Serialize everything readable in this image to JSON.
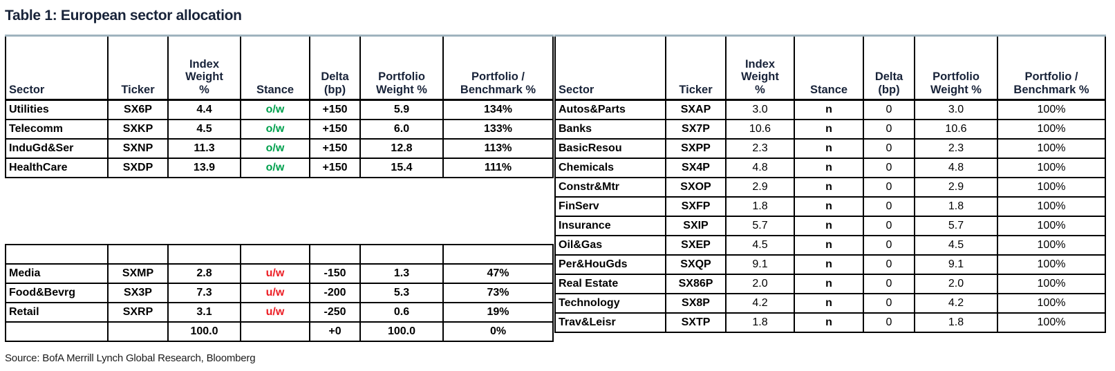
{
  "title": "Table 1: European sector allocation",
  "source": "Source: BofA Merrill Lynch Global Research, Bloomberg",
  "headers": [
    "Sector",
    "Ticker",
    "Index\nWeight\n%",
    "Stance",
    "Delta\n(bp)",
    "Portfolio\nWeight %",
    "Portfolio /\nBenchmark %"
  ],
  "left_top": {
    "rows": [
      [
        "Utilities",
        "SX6P",
        "4.4",
        "o/w",
        "+150",
        "5.9",
        "134%"
      ],
      [
        "Telecomm",
        "SXKP",
        "4.5",
        "o/w",
        "+150",
        "6.0",
        "133%"
      ],
      [
        "InduGd&Ser",
        "SXNP",
        "11.3",
        "o/w",
        "+150",
        "12.8",
        "113%"
      ],
      [
        "HealthCare",
        "SXDP",
        "13.9",
        "o/w",
        "+150",
        "15.4",
        "111%"
      ]
    ]
  },
  "left_bottom": {
    "rows": [
      [
        "",
        "",
        "",
        "",
        "",
        "",
        ""
      ],
      [
        "Media",
        "SXMP",
        "2.8",
        "u/w",
        "-150",
        "1.3",
        "47%"
      ],
      [
        "Food&Bevrg",
        "SX3P",
        "7.3",
        "u/w",
        "-200",
        "5.3",
        "73%"
      ],
      [
        "Retail",
        "SXRP",
        "3.1",
        "u/w",
        "-250",
        "0.6",
        "19%"
      ],
      [
        "",
        "",
        "100.0",
        "",
        "+0",
        "100.0",
        "0%"
      ]
    ]
  },
  "right": {
    "rows": [
      [
        "Autos&Parts",
        "SXAP",
        "3.0",
        "n",
        "0",
        "3.0",
        "100%"
      ],
      [
        "Banks",
        "SX7P",
        "10.6",
        "n",
        "0",
        "10.6",
        "100%"
      ],
      [
        "BasicResou",
        "SXPP",
        "2.3",
        "n",
        "0",
        "2.3",
        "100%"
      ],
      [
        "Chemicals",
        "SX4P",
        "4.8",
        "n",
        "0",
        "4.8",
        "100%"
      ],
      [
        "Constr&Mtr",
        "SXOP",
        "2.9",
        "n",
        "0",
        "2.9",
        "100%"
      ],
      [
        "FinServ",
        "SXFP",
        "1.8",
        "n",
        "0",
        "1.8",
        "100%"
      ],
      [
        "Insurance",
        "SXIP",
        "5.7",
        "n",
        "0",
        "5.7",
        "100%"
      ],
      [
        "Oil&Gas",
        "SXEP",
        "4.5",
        "n",
        "0",
        "4.5",
        "100%"
      ],
      [
        "Per&HouGds",
        "SXQP",
        "9.1",
        "n",
        "0",
        "9.1",
        "100%"
      ],
      [
        "Real Estate",
        "SX86P",
        "2.0",
        "n",
        "0",
        "2.0",
        "100%"
      ],
      [
        "Technology",
        "SX8P",
        "4.2",
        "n",
        "0",
        "4.2",
        "100%"
      ],
      [
        "Trav&Leisr",
        "SXTP",
        "1.8",
        "n",
        "0",
        "1.8",
        "100%"
      ]
    ]
  },
  "colors": {
    "overweight_green": "#00A04D",
    "underweight_red": "#EC1D24",
    "heading_navy": "#182339",
    "top_rule_blue_gray": "#9FB3BE",
    "border_black": "#000000"
  }
}
